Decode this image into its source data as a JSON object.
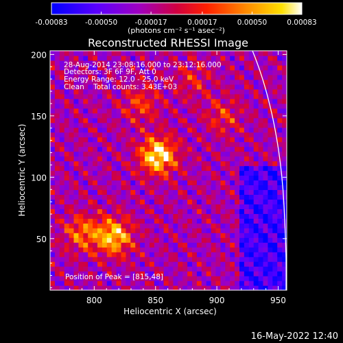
{
  "chart_data": {
    "type": "heatmap",
    "title": "Reconstructed RHESSI Image",
    "xlabel": "Heliocentric X (arcsec)",
    "ylabel": "Heliocentric Y (arcsec)",
    "xlim": [
      764,
      957
    ],
    "ylim": [
      8,
      203
    ],
    "x_ticks": [
      "800",
      "850",
      "900",
      "950"
    ],
    "x_tick_values": [
      800,
      850,
      900,
      950
    ],
    "y_ticks": [
      "50",
      "100",
      "150",
      "200"
    ],
    "y_tick_values": [
      50,
      100,
      150,
      200
    ],
    "colorbar": {
      "min": -0.00083,
      "max": 0.00083,
      "tick_labels": [
        "-0.00083",
        "-0.00050",
        "-0.00017",
        "0.00017",
        "0.00050",
        "0.00083"
      ],
      "tick_values": [
        -0.00083,
        -0.0005,
        -0.00017,
        0.00017,
        0.0005,
        0.00083
      ],
      "unit_label": "(photons cm⁻² s⁻¹ asec⁻²)"
    },
    "info_lines": [
      "28-Aug-2014 23:08:16.000 to 23:12:16.000",
      "Detectors: 3F 6F 9F, Att 0",
      "Energy Range: 12.0 - 25.0 keV",
      "Clean    Total counts: 3.43E+03"
    ],
    "peak_label": "Position of Peak = [815,48]",
    "peak_position": [
      815,
      48
    ],
    "sources": [
      {
        "x": 852,
        "y": 118,
        "intensity": 1.0
      },
      {
        "x": 816,
        "y": 52,
        "intensity": 0.85
      },
      {
        "x": 790,
        "y": 55,
        "intensity": 0.55
      },
      {
        "x": 838,
        "y": 160,
        "intensity": 0.4
      },
      {
        "x": 905,
        "y": 150,
        "intensity": 0.35
      },
      {
        "x": 880,
        "y": 180,
        "intensity": 0.3
      }
    ],
    "limb": "white solar limb arc near right edge",
    "colors": {
      "colormap": [
        "#0000ff",
        "#7a00ff",
        "#c000a0",
        "#ff0000",
        "#ff8000",
        "#ffff00",
        "#ffffff"
      ],
      "background": "#000000",
      "text": "#ffffff"
    }
  },
  "footer": {
    "timestamp": "16-May-2022 12:40"
  }
}
